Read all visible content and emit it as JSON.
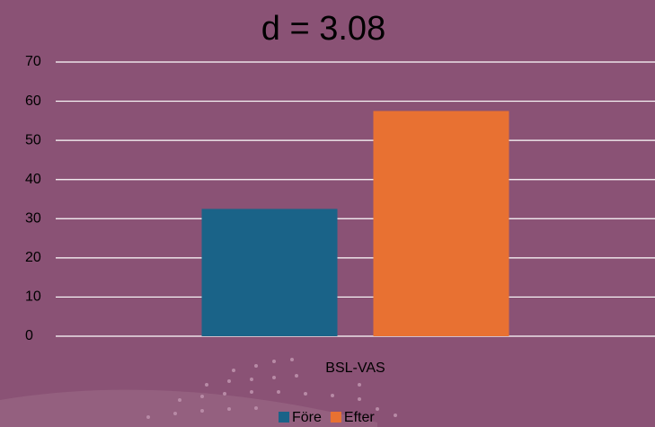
{
  "chart_data": {
    "type": "bar",
    "title": "d = 3.08",
    "categories": [
      "BSL-VAS"
    ],
    "series": [
      {
        "name": "Före",
        "color": "#1a6388",
        "values": [
          32.5
        ]
      },
      {
        "name": "Efter",
        "color": "#e87132",
        "values": [
          57.5
        ]
      }
    ],
    "ylim": [
      0,
      70
    ],
    "yticks": [
      0,
      10,
      20,
      30,
      40,
      50,
      60,
      70
    ],
    "grid": true,
    "legend": "bottom"
  }
}
